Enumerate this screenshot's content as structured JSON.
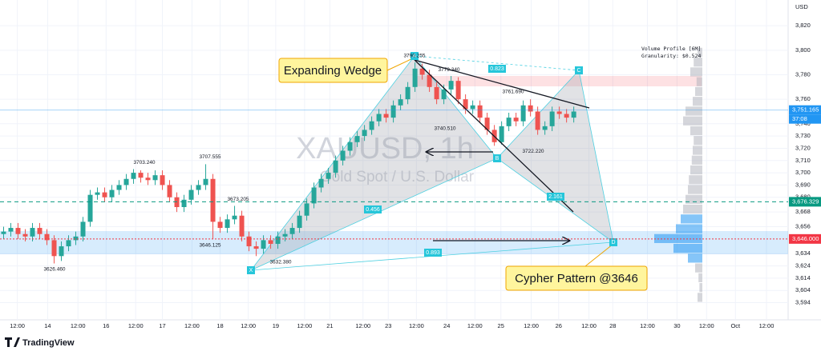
{
  "chart_data": {
    "type": "candlestick",
    "title": "XAUUSD, 1h",
    "subtitle": "Gold Spot / U.S. Dollar",
    "currency": "USD",
    "open": [
      3650,
      3652,
      3655,
      3650,
      3648,
      3655,
      3650,
      3645,
      3632,
      3640,
      3645,
      3648,
      3660,
      3682,
      3684,
      3680,
      3686,
      3690,
      3695,
      3700,
      3696,
      3694,
      3698,
      3690,
      3680,
      3672,
      3678,
      3686,
      3690,
      3695,
      3660,
      3655,
      3662,
      3665,
      3648,
      3640,
      3638,
      3645,
      3642,
      3648,
      3650,
      3655,
      3665,
      3675,
      3688,
      3695,
      3700,
      3710,
      3718,
      3725,
      3730,
      3735,
      3742,
      3748,
      3745,
      3755,
      3760,
      3770,
      3785,
      3780,
      3770,
      3760,
      3768,
      3775,
      3760,
      3752,
      3755,
      3745,
      3735,
      3725,
      3738,
      3745,
      3742,
      3755,
      3750,
      3735,
      3738,
      3750,
      3748,
      3745
    ],
    "high": [
      3656,
      3659,
      3659,
      3654,
      3659,
      3659,
      3654,
      3649,
      3644,
      3649,
      3652,
      3664,
      3686,
      3688,
      3688,
      3690,
      3694,
      3699,
      3703,
      3702,
      3700,
      3702,
      3702,
      3694,
      3684,
      3682,
      3690,
      3694,
      3707,
      3699,
      3664,
      3666,
      3673,
      3669,
      3652,
      3644,
      3649,
      3649,
      3652,
      3654,
      3659,
      3669,
      3679,
      3692,
      3699,
      3704,
      3714,
      3722,
      3729,
      3734,
      3739,
      3746,
      3752,
      3752,
      3759,
      3764,
      3774,
      3790,
      3789,
      3784,
      3774,
      3772,
      3779,
      3778,
      3764,
      3759,
      3759,
      3749,
      3739,
      3742,
      3749,
      3749,
      3759,
      3760,
      3754,
      3742,
      3754,
      3754,
      3752,
      3754
    ],
    "low": [
      3646,
      3648,
      3646,
      3644,
      3644,
      3646,
      3641,
      3626,
      3628,
      3636,
      3641,
      3644,
      3656,
      3678,
      3676,
      3676,
      3682,
      3686,
      3691,
      3692,
      3690,
      3690,
      3686,
      3676,
      3668,
      3668,
      3674,
      3682,
      3686,
      3646,
      3651,
      3651,
      3658,
      3644,
      3636,
      3632,
      3634,
      3638,
      3638,
      3644,
      3646,
      3651,
      3661,
      3671,
      3684,
      3691,
      3696,
      3706,
      3714,
      3721,
      3726,
      3731,
      3738,
      3741,
      3741,
      3751,
      3756,
      3766,
      3776,
      3766,
      3756,
      3756,
      3764,
      3756,
      3748,
      3748,
      3741,
      3731,
      3722,
      3723,
      3734,
      3738,
      3738,
      3746,
      3731,
      3731,
      3734,
      3744,
      3741,
      3741
    ],
    "close": [
      3652,
      3655,
      3650,
      3648,
      3655,
      3650,
      3645,
      3632,
      3640,
      3645,
      3648,
      3660,
      3682,
      3684,
      3680,
      3686,
      3690,
      3695,
      3700,
      3696,
      3694,
      3698,
      3690,
      3680,
      3672,
      3678,
      3686,
      3690,
      3695,
      3660,
      3655,
      3662,
      3665,
      3648,
      3640,
      3638,
      3645,
      3642,
      3648,
      3650,
      3655,
      3665,
      3675,
      3688,
      3695,
      3700,
      3710,
      3718,
      3725,
      3730,
      3735,
      3742,
      3748,
      3745,
      3755,
      3760,
      3770,
      3785,
      3780,
      3770,
      3760,
      3768,
      3775,
      3760,
      3752,
      3755,
      3745,
      3735,
      3725,
      3738,
      3745,
      3742,
      3755,
      3750,
      3735,
      3738,
      3750,
      3748,
      3745,
      3750
    ],
    "up_color": "#26a69a",
    "down_color": "#ef5350",
    "xlim": [
      -0.5,
      108.7
    ],
    "xticks": [
      {
        "value": 1.9,
        "label": "12:00"
      },
      {
        "value": 6.1,
        "label": "14"
      },
      {
        "value": 10.3,
        "label": "12:00"
      },
      {
        "value": 14.2,
        "label": "16"
      },
      {
        "value": 18.3,
        "label": "12:00"
      },
      {
        "value": 22,
        "label": "17"
      },
      {
        "value": 26.1,
        "label": "12:00"
      },
      {
        "value": 30,
        "label": "18"
      },
      {
        "value": 33.9,
        "label": "12:00"
      },
      {
        "value": 37.7,
        "label": "19"
      },
      {
        "value": 41.7,
        "label": "12:00"
      },
      {
        "value": 45.2,
        "label": "21"
      },
      {
        "value": 49.8,
        "label": "12:00"
      },
      {
        "value": 53.3,
        "label": "23"
      },
      {
        "value": 57.2,
        "label": "12:00"
      },
      {
        "value": 61.4,
        "label": "24"
      },
      {
        "value": 65.3,
        "label": "12:00"
      },
      {
        "value": 68.9,
        "label": "25"
      },
      {
        "value": 73.1,
        "label": "12:00"
      },
      {
        "value": 76.9,
        "label": "26"
      },
      {
        "value": 81.1,
        "label": "12:00"
      },
      {
        "value": 84.4,
        "label": "28"
      },
      {
        "value": 89.2,
        "label": "12:00"
      },
      {
        "value": 93.3,
        "label": "30"
      },
      {
        "value": 97.4,
        "label": "12:00"
      },
      {
        "value": 101.4,
        "label": "Oct"
      },
      {
        "value": 105.7,
        "label": "12:00"
      }
    ],
    "ylim": [
      3580,
      3841
    ],
    "yticks": [
      {
        "value": 3594,
        "label": "3,594"
      },
      {
        "value": 3604,
        "label": "3,604"
      },
      {
        "value": 3614,
        "label": "3,614"
      },
      {
        "value": 3624,
        "label": "3,624"
      },
      {
        "value": 3634,
        "label": "3,634"
      },
      {
        "value": 3656,
        "label": "3,656"
      },
      {
        "value": 3668,
        "label": "3,668"
      },
      {
        "value": 3680,
        "label": "3,680"
      },
      {
        "value": 3690,
        "label": "3,690"
      },
      {
        "value": 3700,
        "label": "3,700"
      },
      {
        "value": 3710,
        "label": "3,710"
      },
      {
        "value": 3720,
        "label": "3,720"
      },
      {
        "value": 3730,
        "label": "3,730"
      },
      {
        "value": 3740,
        "label": "3,740"
      },
      {
        "value": 3760,
        "label": "3,760"
      },
      {
        "value": 3780,
        "label": "3,780"
      },
      {
        "value": 3800,
        "label": "3,800"
      },
      {
        "value": 3820,
        "label": "3,820"
      }
    ],
    "price_lines": [
      {
        "value": 3751.165,
        "label": "3,751.165",
        "color": "#2196f3"
      },
      {
        "value": 3676.329,
        "label": "3,676.329",
        "color": "#089981"
      },
      {
        "value": 3646,
        "label": "3,646.000",
        "color": "#f23645"
      }
    ],
    "countdown": "37:08",
    "price_notes": [
      {
        "value": 3626.46,
        "label": "3626.460"
      },
      {
        "value": 3703.24,
        "label": "3703.240"
      },
      {
        "value": 3707.555,
        "label": "3707.555"
      },
      {
        "value": 3673.205,
        "label": "3673.205"
      },
      {
        "value": 3646.125,
        "label": "3646.125"
      },
      {
        "value": 3632.38,
        "label": "3632.380"
      },
      {
        "value": 3790.255,
        "label": "3790.255"
      },
      {
        "value": 3779.34,
        "label": "3779.340"
      },
      {
        "value": 3761.69,
        "label": "3761.690"
      },
      {
        "value": 3740.51,
        "label": "3740.510"
      },
      {
        "value": 3722.22,
        "label": "3722.220"
      }
    ],
    "annotations": [
      "Expanding Wedge",
      "Cypher Pattern @3646"
    ],
    "fib_labels": [
      "0.823",
      "0.456",
      "2.161",
      "0.893"
    ],
    "points": [
      "X",
      "A",
      "B",
      "C",
      "D"
    ],
    "volume_profile": {
      "title": "Volume Profile [6M]",
      "granularity": "Granularity: $0.524",
      "prices": [
        3598,
        3606,
        3614,
        3622,
        3630,
        3638,
        3646,
        3654,
        3662,
        3670,
        3678,
        3686,
        3694,
        3702,
        3710,
        3718,
        3726,
        3734,
        3742,
        3750,
        3758,
        3766,
        3774,
        3782,
        3790,
        3798
      ],
      "values": [
        10,
        6,
        8,
        15,
        30,
        60,
        100,
        55,
        45,
        40,
        35,
        30,
        28,
        25,
        22,
        20,
        18,
        25,
        40,
        35,
        20,
        15,
        12,
        25,
        18,
        10
      ]
    },
    "brand": "TradingView"
  }
}
